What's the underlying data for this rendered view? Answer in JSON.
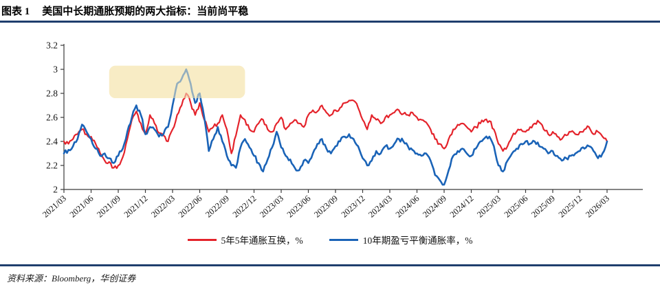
{
  "header": {
    "tag": "图表 1",
    "title": "美国中长期通胀预期的两大指标：当前尚平稳"
  },
  "source": {
    "label": "资料来源：Bloomberg，华创证券"
  },
  "colors": {
    "red_line": "#E4232B",
    "blue_line": "#1A63B7",
    "rule": "#1F3E6D",
    "highlight": "#F8ECC5",
    "axis": "#3A3A3A"
  },
  "legend": [
    {
      "label": "5年5年通胀互换，%",
      "color": "#E4232B"
    },
    {
      "label": "10年期盈亏平衡通胀率，%",
      "color": "#1A63B7"
    }
  ],
  "chart_data": {
    "type": "line",
    "title": "",
    "xlabel": "",
    "ylabel": "",
    "ylim": [
      2.0,
      3.2
    ],
    "y_tick_labels": [
      "3.2",
      "3",
      "2.8",
      "2.6",
      "2.4",
      "2.2",
      "2"
    ],
    "x_tick_labels": [
      "2021/03",
      "2021/06",
      "2021/09",
      "2021/12",
      "2022/03",
      "2022/06",
      "2022/09",
      "2022/12",
      "2023/03",
      "2023/06",
      "2023/09",
      "2023/12",
      "2024/03",
      "2024/06",
      "2024/09",
      "2024/12",
      "2025/03",
      "2025/06",
      "2025/09",
      "2025/12",
      "2026/03"
    ],
    "x_start": "2021/03",
    "x_end": "2026/03",
    "sampling": "semi-monthly",
    "grid": false,
    "legend_position": "bottom",
    "noise_amplitude": 0.018,
    "upsample": 3,
    "highlight_region": {
      "x_from": "2021/08",
      "x_to": "2022/11",
      "y_from": 2.76,
      "y_to": 3.03,
      "color": "#F8ECC5"
    },
    "series": [
      {
        "name": "5年5年通胀互换，%",
        "color": "#E4232B",
        "values": [
          2.4,
          2.38,
          2.42,
          2.46,
          2.5,
          2.46,
          2.44,
          2.38,
          2.3,
          2.24,
          2.23,
          2.18,
          2.2,
          2.27,
          2.42,
          2.58,
          2.65,
          2.55,
          2.46,
          2.62,
          2.55,
          2.47,
          2.45,
          2.4,
          2.5,
          2.62,
          2.7,
          2.8,
          2.72,
          2.62,
          2.72,
          2.58,
          2.48,
          2.52,
          2.55,
          2.62,
          2.5,
          2.3,
          2.45,
          2.62,
          2.58,
          2.5,
          2.48,
          2.55,
          2.58,
          2.5,
          2.48,
          2.55,
          2.6,
          2.5,
          2.55,
          2.58,
          2.55,
          2.52,
          2.62,
          2.66,
          2.65,
          2.7,
          2.64,
          2.62,
          2.66,
          2.68,
          2.72,
          2.74,
          2.74,
          2.68,
          2.58,
          2.5,
          2.62,
          2.58,
          2.55,
          2.6,
          2.62,
          2.64,
          2.66,
          2.63,
          2.62,
          2.64,
          2.6,
          2.58,
          2.56,
          2.5,
          2.42,
          2.38,
          2.34,
          2.42,
          2.5,
          2.54,
          2.55,
          2.52,
          2.48,
          2.52,
          2.55,
          2.58,
          2.57,
          2.5,
          2.38,
          2.32,
          2.36,
          2.44,
          2.48,
          2.5,
          2.48,
          2.52,
          2.55,
          2.56,
          2.5,
          2.46,
          2.48,
          2.44,
          2.42,
          2.45,
          2.48,
          2.46,
          2.48,
          2.5,
          2.52,
          2.46,
          2.48,
          2.44,
          2.4
        ]
      },
      {
        "name": "10年期盈亏平衡通胀率，%",
        "color": "#1A63B7",
        "values": [
          2.3,
          2.33,
          2.36,
          2.42,
          2.54,
          2.48,
          2.42,
          2.34,
          2.28,
          2.3,
          2.26,
          2.22,
          2.28,
          2.34,
          2.48,
          2.6,
          2.7,
          2.62,
          2.46,
          2.52,
          2.5,
          2.44,
          2.46,
          2.52,
          2.7,
          2.88,
          2.92,
          3.0,
          2.88,
          2.72,
          2.8,
          2.6,
          2.32,
          2.42,
          2.52,
          2.4,
          2.28,
          2.2,
          2.18,
          2.35,
          2.42,
          2.35,
          2.28,
          2.22,
          2.15,
          2.25,
          2.35,
          2.48,
          2.35,
          2.28,
          2.25,
          2.18,
          2.16,
          2.24,
          2.22,
          2.3,
          2.38,
          2.42,
          2.34,
          2.3,
          2.36,
          2.4,
          2.44,
          2.46,
          2.42,
          2.36,
          2.26,
          2.2,
          2.24,
          2.32,
          2.3,
          2.36,
          2.34,
          2.38,
          2.42,
          2.4,
          2.36,
          2.33,
          2.3,
          2.28,
          2.3,
          2.24,
          2.12,
          2.08,
          2.04,
          2.16,
          2.28,
          2.32,
          2.34,
          2.3,
          2.28,
          2.34,
          2.4,
          2.43,
          2.44,
          2.36,
          2.2,
          2.15,
          2.24,
          2.3,
          2.34,
          2.38,
          2.4,
          2.38,
          2.4,
          2.36,
          2.34,
          2.3,
          2.32,
          2.28,
          2.24,
          2.26,
          2.28,
          2.3,
          2.32,
          2.34,
          2.36,
          2.32,
          2.26,
          2.3,
          2.4
        ]
      }
    ]
  }
}
